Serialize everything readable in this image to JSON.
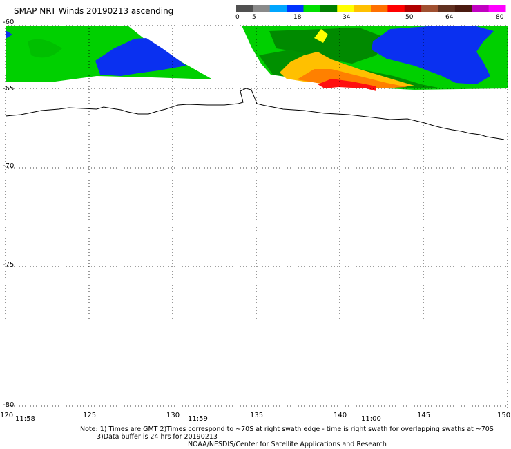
{
  "title": "SMAP NRT Winds 20190213 ascending",
  "colorbar": {
    "tick_labels": [
      "0",
      "5",
      "18",
      "34",
      "50",
      "64",
      "80"
    ],
    "colors": [
      "#505050",
      "#8a8a8a",
      "#00a6ff",
      "#0033ff",
      "#00e000",
      "#008000",
      "#ffff00",
      "#ffc000",
      "#ff7000",
      "#ff0000",
      "#b00000",
      "#a05030",
      "#603020",
      "#4a1a10",
      "#c000c0",
      "#ff00ff"
    ]
  },
  "lat_labels": [
    "-60",
    "-65",
    "-70",
    "-75",
    "-80"
  ],
  "lon_labels": [
    "120",
    "125",
    "130",
    "135",
    "140",
    "145",
    "150"
  ],
  "time_labels": [
    "11:58",
    "11:59",
    "11:00"
  ],
  "notes": {
    "line1": "Note: 1) Times are GMT 2)Times correspond to ~70S at right swath edge - time is right swath for overlapping swaths at ~70S",
    "line2": "3)Data buffer is 24 hrs for 20190213",
    "line3": "NOAA/NESDIS/Center for Satellite Applications and Research"
  }
}
